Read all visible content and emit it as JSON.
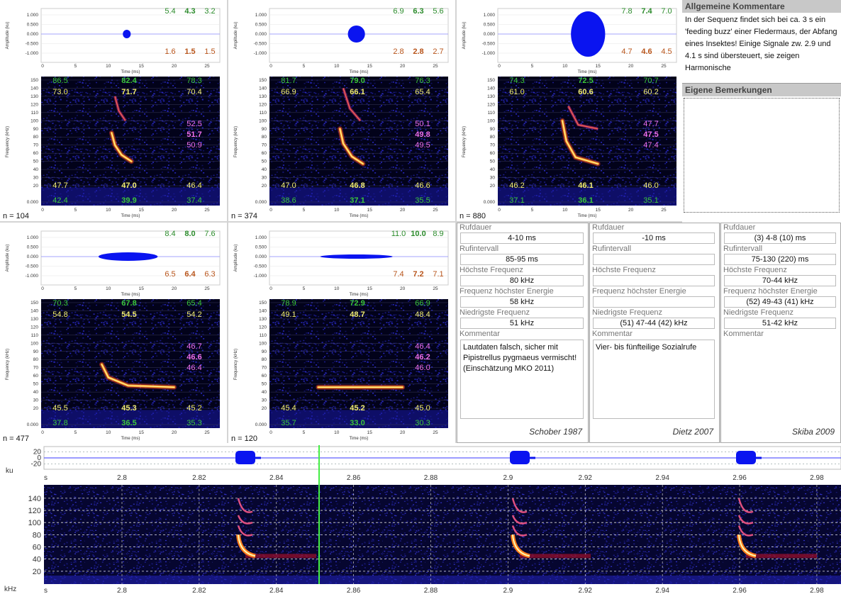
{
  "panel_axes": {
    "amplitude_label": "Amplitude (ku)",
    "amplitude_ticks": [
      "1.000",
      "0.500",
      "0.000",
      "-0.500",
      "-1.000"
    ],
    "time_label": "Time (ms)",
    "time_ticks": [
      "0",
      "5",
      "10",
      "15",
      "20",
      "25"
    ],
    "frequency_label": "Frequency (kHz)",
    "frequency_ticks": [
      "150",
      "140",
      "130",
      "120",
      "110",
      "100",
      "90",
      "80",
      "70",
      "60",
      "50",
      "40",
      "30",
      "20",
      "0.000"
    ]
  },
  "panels": [
    {
      "amplitude_top": [
        "5.4",
        "4.3",
        "3.2"
      ],
      "amplitude_bottom": [
        "1.6",
        "1.5",
        "1.5"
      ],
      "frequency_top": [
        "86.5",
        "82.4",
        "78.3"
      ],
      "frequency_upper": [
        "73.0",
        "71.7",
        "70.4"
      ],
      "frequency_middle": [
        "52.5",
        "51.7",
        "50.9"
      ],
      "frequency_lower": [
        "47.7",
        "47.0",
        "46.4"
      ],
      "frequency_bottom": [
        "42.4",
        "39.9",
        "37.4"
      ],
      "n": "n = 104"
    },
    {
      "amplitude_top": [
        "6.9",
        "6.3",
        "5.6"
      ],
      "amplitude_bottom": [
        "2.8",
        "2.8",
        "2.7"
      ],
      "frequency_top": [
        "81.7",
        "79.0",
        "76.3"
      ],
      "frequency_upper": [
        "66.9",
        "66.1",
        "65.4"
      ],
      "frequency_middle": [
        "50.1",
        "49.8",
        "49.5"
      ],
      "frequency_lower": [
        "47.0",
        "46.8",
        "46.6"
      ],
      "frequency_bottom": [
        "38.6",
        "37.1",
        "35.5"
      ],
      "n": "n = 374"
    },
    {
      "amplitude_top": [
        "7.8",
        "7.4",
        "7.0"
      ],
      "amplitude_bottom": [
        "4.7",
        "4.6",
        "4.5"
      ],
      "frequency_top": [
        "74.3",
        "72.5",
        "70.7"
      ],
      "frequency_upper": [
        "61.0",
        "60.6",
        "60.2"
      ],
      "frequency_middle": [
        "47.7",
        "47.5",
        "47.4"
      ],
      "frequency_lower": [
        "46.2",
        "46.1",
        "46.0"
      ],
      "frequency_bottom": [
        "37.1",
        "36.1",
        "35.1"
      ],
      "n": "n = 880"
    },
    {
      "amplitude_top": [
        "8.4",
        "8.0",
        "7.6"
      ],
      "amplitude_bottom": [
        "6.5",
        "6.4",
        "6.3"
      ],
      "frequency_top": [
        "70.3",
        "67.8",
        "65.4"
      ],
      "frequency_upper": [
        "54.8",
        "54.5",
        "54.2"
      ],
      "frequency_middle": [
        "46.7",
        "46.6",
        "46.4"
      ],
      "frequency_lower": [
        "45.5",
        "45.3",
        "45.2"
      ],
      "frequency_bottom": [
        "37.8",
        "36.5",
        "35.3"
      ],
      "n": "n = 477"
    },
    {
      "amplitude_top": [
        "11.0",
        "10.0",
        "8.9"
      ],
      "amplitude_bottom": [
        "7.4",
        "7.2",
        "7.1"
      ],
      "frequency_top": [
        "78.9",
        "72.9",
        "66.9"
      ],
      "frequency_upper": [
        "49.1",
        "48.7",
        "48.4"
      ],
      "frequency_middle": [
        "46.4",
        "46.2",
        "46.0"
      ],
      "frequency_lower": [
        "45.4",
        "45.2",
        "45.0"
      ],
      "frequency_bottom": [
        "35.7",
        "33.0",
        "30.3"
      ],
      "n": "n = 120"
    }
  ],
  "comments": {
    "general_title": "Allgemeine Kommentare",
    "general_text": "In der Sequenz findet sich bei ca. 3 s ein 'feeding buzz' einer Fledermaus, der Abfang eines Insektes! Einige Signale zw. 2.9 und 4.1 s sind übersteuert, sie zeigen Harmonische",
    "own_title": "Eigene Bemerkungen"
  },
  "references": {
    "fields": [
      "Rufdauer",
      "Rufintervall",
      "Höchste Frequenz",
      "Frequenz höchster Energie",
      "Niedrigste Frequenz",
      "Kommentar"
    ],
    "columns": [
      {
        "values": [
          "4-10 ms",
          "85-95 ms",
          "80 kHz",
          "58 kHz",
          "51 kHz"
        ],
        "comment": "Lautdaten falsch, sicher mit Pipistrellus pygmaeus vermischt!(Einschätzung MKO 2011)",
        "author": "Schober 1987"
      },
      {
        "values": [
          "-10 ms",
          null,
          null,
          null,
          "(51) 47-44 (42) kHz"
        ],
        "comment": "Vier- bis fünfteilige Sozialrufe",
        "author": "Dietz 2007"
      },
      {
        "values": [
          "(3) 4-8 (10) ms",
          "75-130 (220) ms",
          "70-44 kHz",
          "(52) 49-43 (41) kHz",
          "51-42 kHz"
        ],
        "comment": null,
        "author": "Skiba 2009"
      }
    ]
  },
  "sequence": {
    "amplitude_ticks": [
      "20",
      "0",
      "-20"
    ],
    "amplitude_unit": "ku",
    "time_unit": "s",
    "time_ticks": [
      "2.8",
      "2.82",
      "2.84",
      "2.86",
      "2.88",
      "2.9",
      "2.92",
      "2.94",
      "2.96",
      "2.98"
    ],
    "frequency_ticks": [
      "140",
      "120",
      "100",
      "80",
      "60",
      "40",
      "20"
    ],
    "frequency_unit": "kHz"
  }
}
